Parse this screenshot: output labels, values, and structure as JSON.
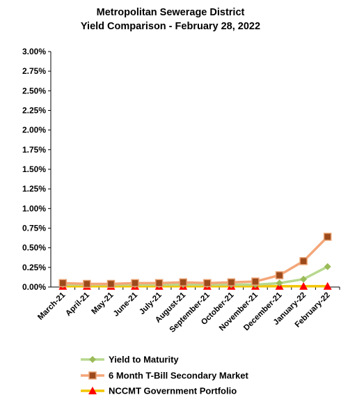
{
  "chart_data": {
    "type": "line",
    "title": "Metropolitan Sewerage District",
    "subtitle": "Yield Comparison -  February 28, 2022",
    "xlabel": "",
    "ylabel": "",
    "ylim": [
      0,
      3.0
    ],
    "y_ticks": [
      "3.00%",
      "2.75%",
      "2.50%",
      "2.25%",
      "2.00%",
      "1.75%",
      "1.50%",
      "1.25%",
      "1.00%",
      "0.75%",
      "0.50%",
      "0.25%",
      "0.00%"
    ],
    "y_tick_values": [
      3.0,
      2.75,
      2.5,
      2.25,
      2.0,
      1.75,
      1.5,
      1.25,
      1.0,
      0.75,
      0.5,
      0.25,
      0.0
    ],
    "categories": [
      "March-21",
      "April-21",
      "May-21",
      "June-21",
      "July-21",
      "August-21",
      "September-21",
      "October-21",
      "November-21",
      "December-21",
      "January-22",
      "February-22"
    ],
    "grid": false,
    "legend_position": "bottom",
    "series": [
      {
        "name": "Yield to Maturity",
        "color": "#9bbb59",
        "line_color": "#b7d88e",
        "marker": "diamond",
        "values": [
          0.03,
          0.03,
          0.03,
          0.03,
          0.03,
          0.03,
          0.03,
          0.03,
          0.03,
          0.05,
          0.1,
          0.26
        ]
      },
      {
        "name": "6 Month T-Bill Secondary Market",
        "color": "#9c4a1c",
        "line_color": "#f4a678",
        "marker": "square",
        "values": [
          0.05,
          0.04,
          0.04,
          0.05,
          0.05,
          0.06,
          0.05,
          0.06,
          0.07,
          0.15,
          0.33,
          0.64
        ]
      },
      {
        "name": "NCCMT Government Portfolio",
        "color": "#ff0000",
        "line_color": "#f2c500",
        "marker": "triangle",
        "values": [
          0.01,
          0.01,
          0.01,
          0.01,
          0.01,
          0.01,
          0.01,
          0.01,
          0.01,
          0.01,
          0.01,
          0.01
        ]
      }
    ]
  }
}
